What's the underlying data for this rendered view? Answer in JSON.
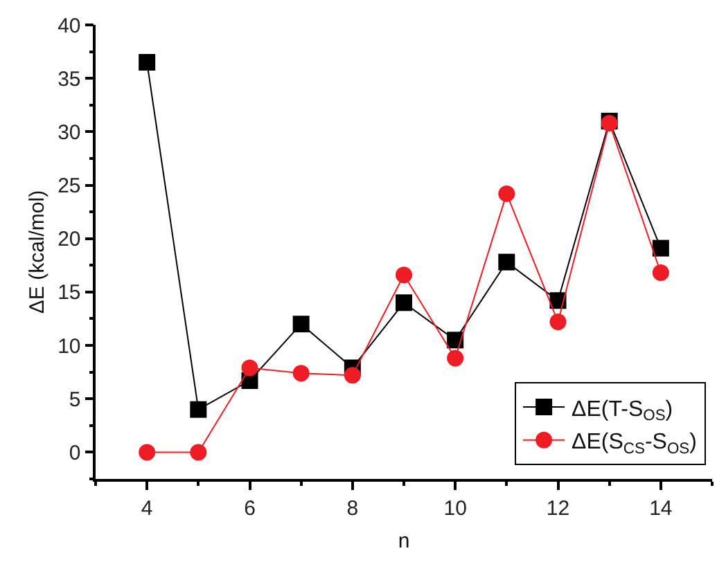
{
  "chart_data": {
    "type": "line",
    "xlabel": "n",
    "ylabel": "ΔE (kcal/mol)",
    "x": [
      4,
      5,
      6,
      7,
      8,
      9,
      10,
      11,
      12,
      13,
      14
    ],
    "series": [
      {
        "name": "ΔE(T-S$_{OS}$)",
        "color": "#000000",
        "marker": "square",
        "values": [
          36.5,
          4.0,
          6.7,
          12.0,
          7.9,
          14.0,
          10.5,
          17.8,
          14.2,
          31.0,
          19.1
        ]
      },
      {
        "name": "ΔE(S$_{CS}$-S$_{OS}$)",
        "color": "#ee1c25",
        "marker": "circle",
        "values": [
          0,
          0,
          7.9,
          7.4,
          7.2,
          16.6,
          8.8,
          24.2,
          12.2,
          30.8,
          16.8
        ]
      }
    ],
    "xlim": [
      3,
      15
    ],
    "xticks": [
      4,
      6,
      8,
      10,
      12,
      14
    ],
    "ylim": [
      -2.5,
      40
    ],
    "yticks": [
      0,
      5,
      10,
      15,
      20,
      25,
      30,
      35,
      40
    ],
    "legend": "bottom right",
    "line_style": "solid"
  }
}
